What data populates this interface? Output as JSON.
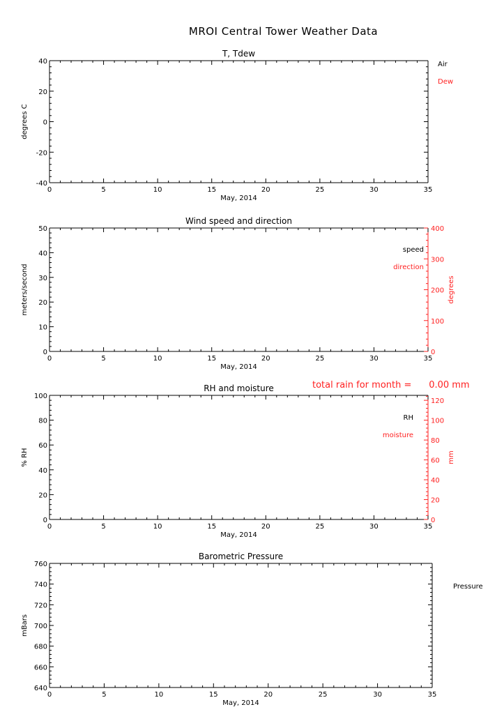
{
  "page": {
    "title": "MROI Central Tower Weather Data",
    "rain_label": "total rain for month =",
    "rain_value": "0.00 mm"
  },
  "colors": {
    "primary": "#000000",
    "secondary": "#ff2020"
  },
  "chart_data": [
    {
      "type": "line",
      "title": "T, Tdew",
      "xlabel": "May, 2014",
      "ylabel": "degrees C",
      "xlim": [
        0,
        35
      ],
      "ylim": [
        -40,
        40
      ],
      "xticks": [
        0,
        5,
        10,
        15,
        20,
        25,
        30,
        35
      ],
      "yticks": [
        -40,
        -20,
        0,
        20,
        40
      ],
      "legend": [
        {
          "label": "Air",
          "color": "#000000"
        },
        {
          "label": "Dew",
          "color": "#ff2020"
        }
      ],
      "legend_position": "outside-right",
      "series": [
        {
          "name": "Air",
          "x": [],
          "y": []
        },
        {
          "name": "Dew",
          "x": [],
          "y": []
        }
      ]
    },
    {
      "type": "line",
      "title": "Wind speed and direction",
      "xlabel": "May, 2014",
      "ylabel": "meters/second",
      "y2label": "degrees",
      "xlim": [
        0,
        35
      ],
      "ylim": [
        0,
        50
      ],
      "y2lim": [
        0,
        400
      ],
      "xticks": [
        0,
        5,
        10,
        15,
        20,
        25,
        30,
        35
      ],
      "yticks": [
        0,
        10,
        20,
        30,
        40,
        50
      ],
      "y2ticks": [
        0,
        100,
        200,
        300,
        400
      ],
      "legend": [
        {
          "label": "speed",
          "color": "#000000"
        },
        {
          "label": "direction",
          "color": "#ff2020"
        }
      ],
      "legend_position": "inside-right",
      "series": [
        {
          "name": "speed",
          "x": [],
          "y": []
        },
        {
          "name": "direction",
          "x": [],
          "y": []
        }
      ]
    },
    {
      "type": "line",
      "title": "RH and moisture",
      "xlabel": "May, 2014",
      "ylabel": "% RH",
      "y2label": "mm",
      "xlim": [
        0,
        35
      ],
      "ylim": [
        0,
        100
      ],
      "y2lim": [
        0,
        125
      ],
      "xticks": [
        0,
        5,
        10,
        15,
        20,
        25,
        30,
        35
      ],
      "yticks": [
        0,
        20,
        40,
        60,
        80,
        100
      ],
      "y2ticks": [
        0,
        20,
        40,
        60,
        80,
        100,
        120
      ],
      "legend": [
        {
          "label": "RH",
          "color": "#000000"
        },
        {
          "label": "moisture",
          "color": "#ff2020"
        }
      ],
      "legend_position": "inside-right",
      "series": [
        {
          "name": "RH",
          "x": [],
          "y": []
        },
        {
          "name": "moisture",
          "x": [],
          "y": []
        }
      ]
    },
    {
      "type": "line",
      "title": "Barometric Pressure",
      "xlabel": "May, 2014",
      "ylabel": "mBars",
      "xlim": [
        0,
        35
      ],
      "ylim": [
        640,
        760
      ],
      "xticks": [
        0,
        5,
        10,
        15,
        20,
        25,
        30,
        35
      ],
      "yticks": [
        640,
        660,
        680,
        700,
        720,
        740,
        760
      ],
      "legend": [
        {
          "label": "Pressure",
          "color": "#000000"
        }
      ],
      "legend_position": "outside-right",
      "series": [
        {
          "name": "Pressure",
          "x": [],
          "y": []
        }
      ]
    }
  ]
}
